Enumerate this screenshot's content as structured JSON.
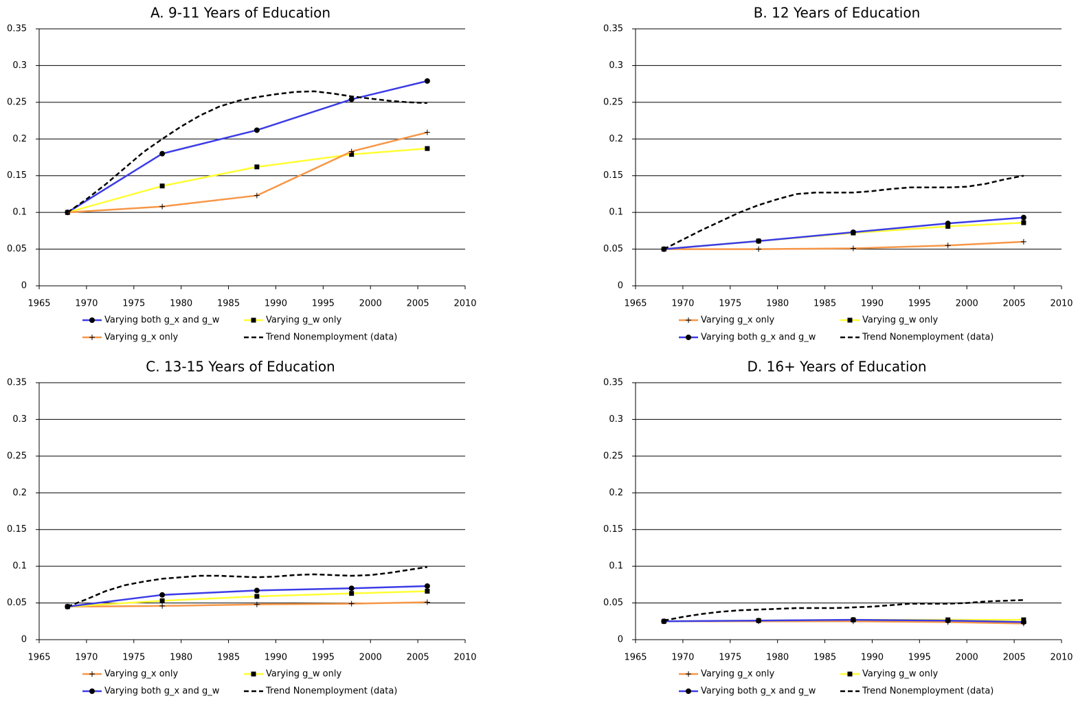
{
  "chart_data": [
    {
      "type": "line",
      "title": "A. 9-11 Years of Education",
      "xlim": [
        1965,
        2010
      ],
      "xticks": [
        1965,
        1970,
        1975,
        1980,
        1985,
        1990,
        1995,
        2000,
        2005,
        2010
      ],
      "ylim": [
        0,
        0.35
      ],
      "yticks": [
        0,
        0.05,
        0.1,
        0.15,
        0.2,
        0.25,
        0.3,
        0.35
      ],
      "grid": true,
      "series": [
        {
          "name": "Varying both g_x and g_w",
          "color": "#3b3be6",
          "marker": "circle",
          "x": [
            1968,
            1978,
            1988,
            1998,
            2006
          ],
          "values": [
            0.1,
            0.18,
            0.212,
            0.254,
            0.279
          ]
        },
        {
          "name": "Varying g_w only",
          "color": "#ffff33",
          "marker": "square",
          "x": [
            1968,
            1978,
            1988,
            1998,
            2006
          ],
          "values": [
            0.1,
            0.136,
            0.162,
            0.179,
            0.187
          ]
        },
        {
          "name": "Varying g_x only",
          "color": "#f79646",
          "marker": "plus",
          "x": [
            1968,
            1978,
            1988,
            1998,
            2006
          ],
          "values": [
            0.1,
            0.108,
            0.123,
            0.183,
            0.209
          ]
        },
        {
          "name": "Trend Nonemployment (data)",
          "color": "#000000",
          "dashed": true,
          "x": [
            1968,
            1970,
            1972,
            1974,
            1976,
            1978,
            1980,
            1982,
            1984,
            1986,
            1988,
            1990,
            1992,
            1994,
            1996,
            1998,
            2000,
            2002,
            2004,
            2006
          ],
          "values": [
            0.1,
            0.118,
            0.138,
            0.16,
            0.182,
            0.2,
            0.217,
            0.232,
            0.244,
            0.252,
            0.257,
            0.261,
            0.264,
            0.265,
            0.262,
            0.258,
            0.255,
            0.252,
            0.25,
            0.249
          ]
        }
      ]
    },
    {
      "type": "line",
      "title": "B. 12 Years of Education",
      "xlim": [
        1965,
        2010
      ],
      "xticks": [
        1965,
        1970,
        1975,
        1980,
        1985,
        1990,
        1995,
        2000,
        2005,
        2010
      ],
      "ylim": [
        0,
        0.35
      ],
      "yticks": [
        0,
        0.05,
        0.1,
        0.15,
        0.2,
        0.25,
        0.3,
        0.35
      ],
      "grid": true,
      "series": [
        {
          "name": "Varying g_x only",
          "color": "#f79646",
          "marker": "plus",
          "x": [
            1968,
            1978,
            1988,
            1998,
            2006
          ],
          "values": [
            0.05,
            0.05,
            0.051,
            0.055,
            0.06
          ]
        },
        {
          "name": "Varying g_w only",
          "color": "#ffff33",
          "marker": "square",
          "x": [
            1968,
            1978,
            1988,
            1998,
            2006
          ],
          "values": [
            0.05,
            0.061,
            0.072,
            0.081,
            0.086
          ]
        },
        {
          "name": "Varying both g_x and g_w",
          "color": "#3b3be6",
          "marker": "circle",
          "x": [
            1968,
            1978,
            1988,
            1998,
            2006
          ],
          "values": [
            0.05,
            0.061,
            0.073,
            0.085,
            0.093
          ]
        },
        {
          "name": "Trend Nonemployment (data)",
          "color": "#000000",
          "dashed": true,
          "x": [
            1968,
            1970,
            1972,
            1974,
            1976,
            1978,
            1980,
            1982,
            1984,
            1986,
            1988,
            1990,
            1992,
            1994,
            1996,
            1998,
            2000,
            2002,
            2004,
            2006
          ],
          "values": [
            0.05,
            0.063,
            0.076,
            0.088,
            0.1,
            0.11,
            0.118,
            0.125,
            0.127,
            0.127,
            0.127,
            0.129,
            0.132,
            0.134,
            0.134,
            0.134,
            0.135,
            0.139,
            0.145,
            0.15
          ]
        }
      ]
    },
    {
      "type": "line",
      "title": "C. 13-15 Years of Education",
      "xlim": [
        1965,
        2010
      ],
      "xticks": [
        1965,
        1970,
        1975,
        1980,
        1985,
        1990,
        1995,
        2000,
        2005,
        2010
      ],
      "ylim": [
        0,
        0.35
      ],
      "yticks": [
        0,
        0.05,
        0.1,
        0.15,
        0.2,
        0.25,
        0.3,
        0.35
      ],
      "grid": true,
      "series": [
        {
          "name": "Varying g_x only",
          "color": "#f79646",
          "marker": "plus",
          "x": [
            1968,
            1978,
            1988,
            1998,
            2006
          ],
          "values": [
            0.045,
            0.046,
            0.048,
            0.049,
            0.051
          ]
        },
        {
          "name": "Varying g_w only",
          "color": "#ffff33",
          "marker": "square",
          "x": [
            1968,
            1978,
            1988,
            1998,
            2006
          ],
          "values": [
            0.045,
            0.053,
            0.059,
            0.063,
            0.066
          ]
        },
        {
          "name": "Varying both g_x and g_w",
          "color": "#3b3be6",
          "marker": "circle",
          "x": [
            1968,
            1978,
            1988,
            1998,
            2006
          ],
          "values": [
            0.045,
            0.061,
            0.067,
            0.07,
            0.073
          ]
        },
        {
          "name": "Trend Nonemployment (data)",
          "color": "#000000",
          "dashed": true,
          "x": [
            1968,
            1970,
            1972,
            1974,
            1976,
            1978,
            1980,
            1982,
            1984,
            1986,
            1988,
            1990,
            1992,
            1994,
            1996,
            1998,
            2000,
            2002,
            2004,
            2006
          ],
          "values": [
            0.045,
            0.055,
            0.066,
            0.074,
            0.079,
            0.083,
            0.085,
            0.087,
            0.087,
            0.086,
            0.085,
            0.086,
            0.088,
            0.089,
            0.088,
            0.087,
            0.088,
            0.091,
            0.095,
            0.099
          ]
        }
      ]
    },
    {
      "type": "line",
      "title": "D. 16+ Years of Education",
      "xlim": [
        1965,
        2010
      ],
      "xticks": [
        1965,
        1970,
        1975,
        1980,
        1985,
        1990,
        1995,
        2000,
        2005,
        2010
      ],
      "ylim": [
        0,
        0.35
      ],
      "yticks": [
        0,
        0.05,
        0.1,
        0.15,
        0.2,
        0.25,
        0.3,
        0.35
      ],
      "grid": true,
      "series": [
        {
          "name": "Varying g_x only",
          "color": "#f79646",
          "marker": "plus",
          "x": [
            1968,
            1978,
            1988,
            1998,
            2006
          ],
          "values": [
            0.025,
            0.025,
            0.025,
            0.024,
            0.022
          ]
        },
        {
          "name": "Varying g_w only",
          "color": "#ffff33",
          "marker": "square",
          "x": [
            1968,
            1978,
            1988,
            1998,
            2006
          ],
          "values": [
            0.025,
            0.026,
            0.027,
            0.027,
            0.027
          ]
        },
        {
          "name": "Varying both g_x and g_w",
          "color": "#3b3be6",
          "marker": "circle",
          "x": [
            1968,
            1978,
            1988,
            1998,
            2006
          ],
          "values": [
            0.025,
            0.026,
            0.027,
            0.026,
            0.024
          ]
        },
        {
          "name": "Trend Nonemployment (data)",
          "color": "#000000",
          "dashed": true,
          "x": [
            1968,
            1970,
            1972,
            1974,
            1976,
            1978,
            1980,
            1982,
            1984,
            1986,
            1988,
            1990,
            1992,
            1994,
            1996,
            1998,
            2000,
            2002,
            2004,
            2006
          ],
          "values": [
            0.026,
            0.031,
            0.035,
            0.038,
            0.04,
            0.041,
            0.042,
            0.043,
            0.043,
            0.043,
            0.044,
            0.045,
            0.047,
            0.049,
            0.049,
            0.049,
            0.05,
            0.052,
            0.053,
            0.054
          ]
        }
      ]
    }
  ]
}
